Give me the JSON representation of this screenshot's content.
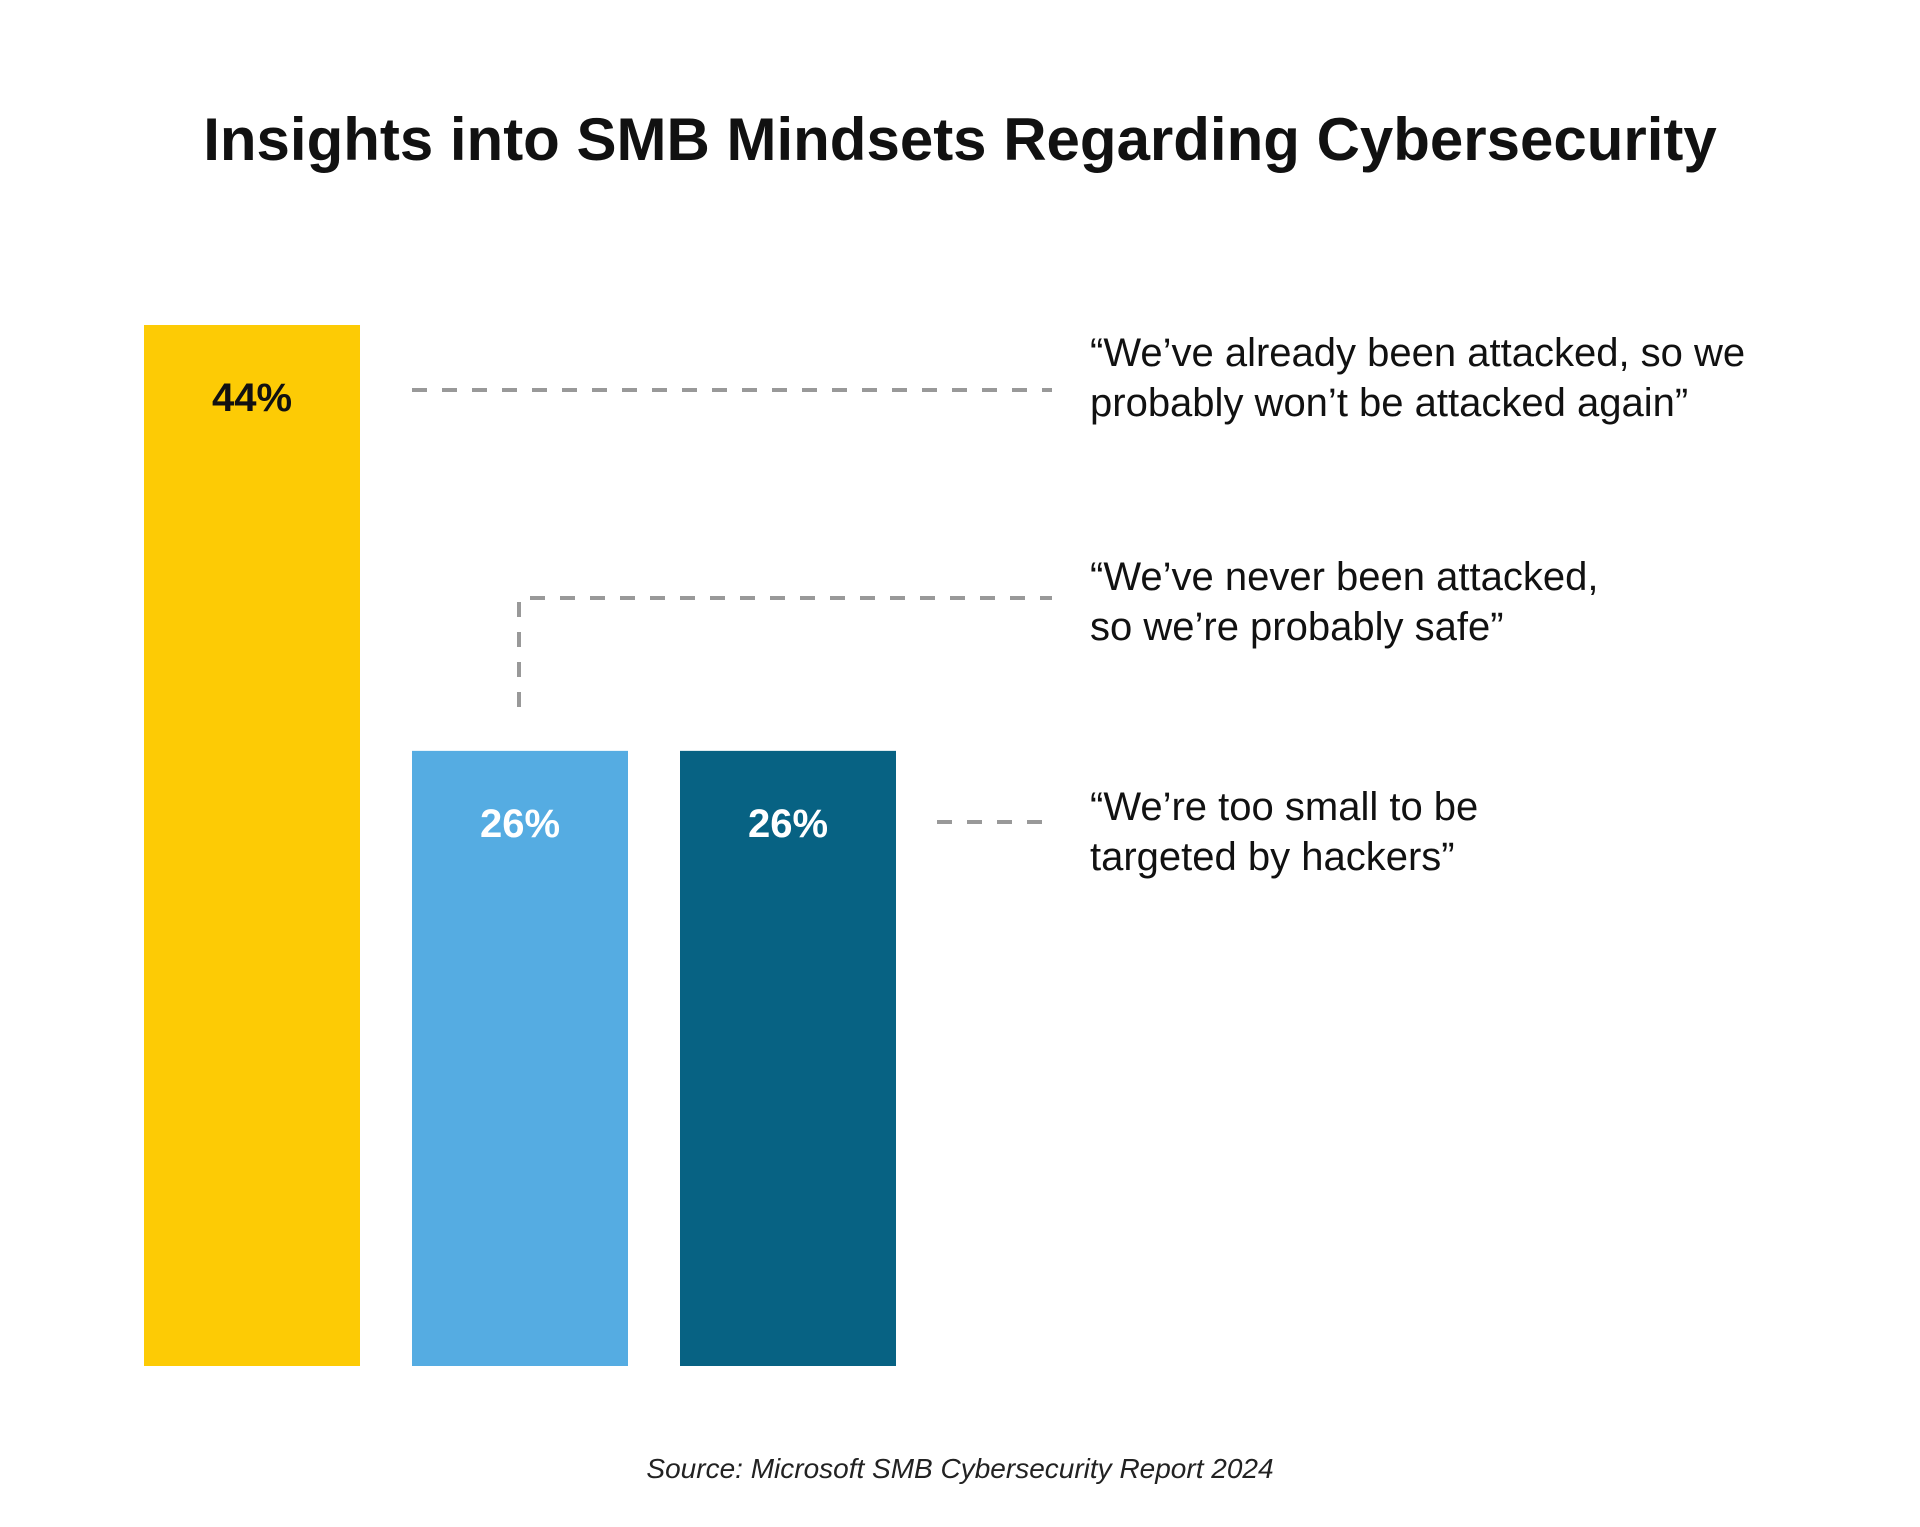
{
  "colors": {
    "background": "#ffffff",
    "title": "#111111",
    "leader_line": "#999999",
    "bar_yellow": "#FDCB05",
    "bar_light_blue": "#55ACE2",
    "bar_dark_blue": "#076283",
    "label_dark": "#111111",
    "label_light": "#ffffff"
  },
  "chart_data": {
    "type": "bar",
    "title": "Insights into SMB Mindsets Regarding Cybersecurity",
    "xlabel": "",
    "ylabel": "",
    "ylim": [
      0,
      44
    ],
    "grid": false,
    "legend": "right (annotation quotes)",
    "categories": [
      "“We’ve already been attacked, so we probably won’t be attacked again”",
      "“We’ve never been attacked, so we’re probably safe”",
      "“We’re too small to be targeted by hackers”"
    ],
    "values": [
      44,
      26,
      26
    ],
    "value_labels": [
      "44%",
      "26%",
      "26%"
    ],
    "bar_colors": [
      "#FDCB05",
      "#55ACE2",
      "#076283"
    ],
    "label_colors": [
      "#111111",
      "#ffffff",
      "#ffffff"
    ],
    "annotations": [
      {
        "bar_index": 0,
        "lines": [
          "“We’ve already been attacked, so we",
          "probably won’t be attacked again”"
        ]
      },
      {
        "bar_index": 1,
        "lines": [
          "“We’ve never been attacked,",
          "so we’re probably safe”"
        ]
      },
      {
        "bar_index": 2,
        "lines": [
          "“We’re too small to be",
          "targeted by hackers”"
        ]
      }
    ],
    "source": "Source: Microsoft SMB Cybersecurity Report 2024"
  }
}
